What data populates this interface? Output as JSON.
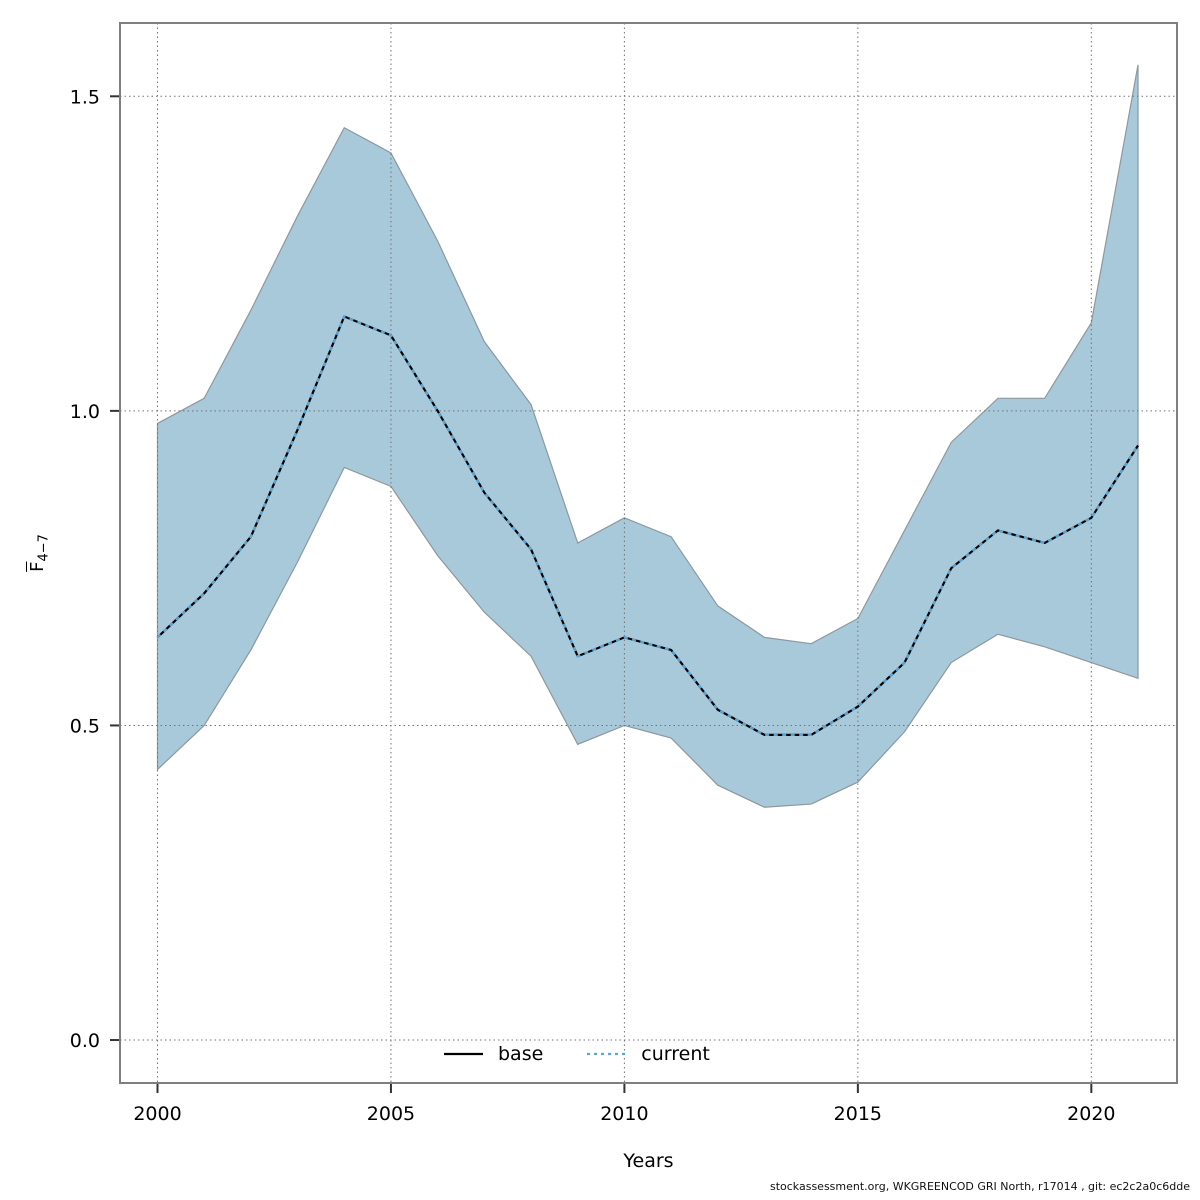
{
  "caption": "stockassessment.org, WKGREENCOD GRI North, r17014 , git: ec2c2a0c6dde",
  "chart_data": {
    "type": "line",
    "title": "",
    "xlabel": "Years",
    "ylabel": {
      "letter": "F",
      "subscript": "4−7"
    },
    "x": [
      2000,
      2001,
      2002,
      2003,
      2004,
      2005,
      2006,
      2007,
      2008,
      2009,
      2010,
      2011,
      2012,
      2013,
      2014,
      2015,
      2016,
      2017,
      2018,
      2019,
      2020,
      2021
    ],
    "series": [
      {
        "name": "base",
        "style": "solid",
        "color": "#000000",
        "values": [
          0.64,
          0.71,
          0.8,
          0.97,
          1.15,
          1.12,
          1.0,
          0.87,
          0.78,
          0.61,
          0.64,
          0.62,
          0.525,
          0.485,
          0.485,
          0.53,
          0.6,
          0.75,
          0.81,
          0.79,
          0.83,
          0.945
        ]
      },
      {
        "name": "current",
        "style": "dotted",
        "color": "#58a7d8",
        "values": [
          0.64,
          0.71,
          0.8,
          0.97,
          1.15,
          1.12,
          1.0,
          0.87,
          0.78,
          0.61,
          0.64,
          0.62,
          0.525,
          0.485,
          0.485,
          0.53,
          0.6,
          0.75,
          0.81,
          0.79,
          0.83,
          0.945
        ]
      }
    ],
    "band": {
      "name": "confidence-band",
      "fill": "#a7c9da",
      "edge_color": "#8d989f",
      "low": [
        0.43,
        0.5,
        0.62,
        0.76,
        0.91,
        0.88,
        0.77,
        0.68,
        0.61,
        0.47,
        0.5,
        0.48,
        0.405,
        0.37,
        0.375,
        0.41,
        0.49,
        0.6,
        0.645,
        0.625,
        0.6,
        0.575
      ],
      "high": [
        0.98,
        1.02,
        1.16,
        1.31,
        1.45,
        1.41,
        1.27,
        1.11,
        1.01,
        0.79,
        0.83,
        0.8,
        0.69,
        0.64,
        0.63,
        0.67,
        0.81,
        0.95,
        1.02,
        1.02,
        1.14,
        1.55
      ]
    },
    "xticks": [
      "2000",
      "2005",
      "2010",
      "2015",
      "2020"
    ],
    "yticks": [
      "0.0",
      "0.5",
      "1.0",
      "1.5"
    ],
    "xlim": [
      1999.197,
      2021.835
    ],
    "ylim": [
      -0.0683,
      1.6165
    ],
    "grid": true,
    "grid_color": "#737373",
    "border_color": "#7f7f7f",
    "tick_color": "#333333",
    "legend_position": "bottom-center"
  }
}
